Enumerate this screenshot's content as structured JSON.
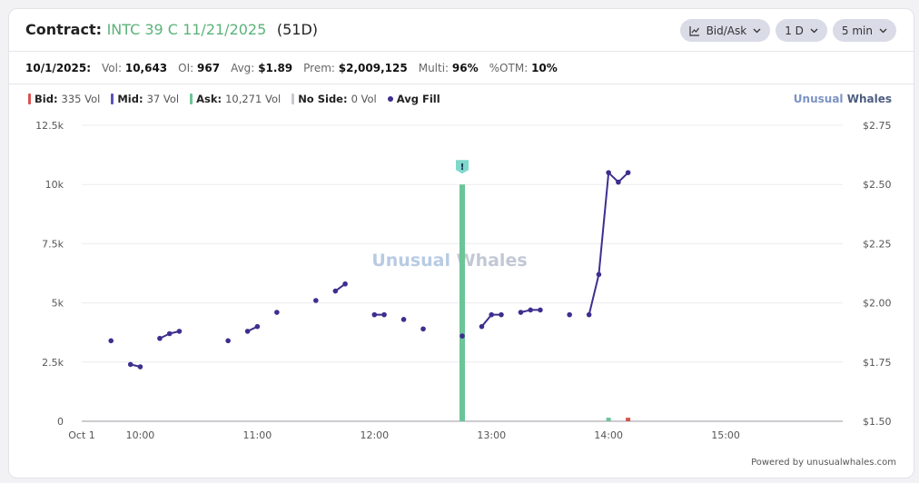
{
  "header": {
    "label": "Contract:",
    "contract": "INTC 39 C 11/21/2025",
    "dte": "(51D)",
    "controls": [
      {
        "label": "Bid/Ask",
        "icon": "chart-icon"
      },
      {
        "label": "1 D"
      },
      {
        "label": "5 min"
      }
    ]
  },
  "stats": {
    "date": "10/1/2025:",
    "vol_label": "Vol:",
    "vol": "10,643",
    "oi_label": "OI:",
    "oi": "967",
    "avg_label": "Avg:",
    "avg": "$1.89",
    "prem_label": "Prem:",
    "prem": "$2,009,125",
    "multi_label": "Multi:",
    "multi": "96%",
    "otm_label": "%OTM:",
    "otm": "10%"
  },
  "legend": {
    "bid_label": "Bid:",
    "bid_value": "335 Vol",
    "mid_label": "Mid:",
    "mid_value": "37 Vol",
    "ask_label": "Ask:",
    "ask_value": "10,271 Vol",
    "noside_label": "No Side:",
    "noside_value": "0 Vol",
    "avgfill_label": "Avg Fill"
  },
  "brand": {
    "part1": "Unusual",
    "part2": "Whales"
  },
  "powered_by": "Powered by unusualwhales.com",
  "colors": {
    "bid": "#d9534f",
    "mid": "#5a55b8",
    "ask": "#6cc497",
    "noside": "#c8c8d0",
    "avg_fill": "#3d2f8f",
    "accent_green": "#5bb37a"
  },
  "chart_data": {
    "type": "bar+line",
    "x_ticks": [
      "Oct 1",
      "10:00",
      "11:00",
      "12:00",
      "13:00",
      "14:00",
      "15:00"
    ],
    "y_left_ticks": [
      "0",
      "2.5k",
      "5k",
      "7.5k",
      "10k",
      "12.5k"
    ],
    "y_left_range": [
      0,
      12500
    ],
    "y_right_ticks": [
      "$1.50",
      "$1.75",
      "$2.00",
      "$2.25",
      "$2.50",
      "$2.75"
    ],
    "y_right_range": [
      1.5,
      2.75
    ],
    "grid": true,
    "volume_bars": [
      {
        "time": "12:45",
        "side": "ask",
        "value": 10000,
        "flag": "!"
      },
      {
        "time": "14:00",
        "side": "ask",
        "value": 150
      },
      {
        "time": "14:10",
        "side": "bid",
        "value": 150
      }
    ],
    "avg_fill_segments": [
      [
        {
          "time": "09:45",
          "price": 1.84
        }
      ],
      [
        {
          "time": "09:55",
          "price": 1.74
        },
        {
          "time": "10:00",
          "price": 1.73
        }
      ],
      [
        {
          "time": "10:10",
          "price": 1.85
        },
        {
          "time": "10:15",
          "price": 1.87
        },
        {
          "time": "10:20",
          "price": 1.88
        }
      ],
      [
        {
          "time": "10:45",
          "price": 1.84
        }
      ],
      [
        {
          "time": "10:55",
          "price": 1.88
        },
        {
          "time": "11:00",
          "price": 1.9
        }
      ],
      [
        {
          "time": "11:10",
          "price": 1.96
        }
      ],
      [
        {
          "time": "11:30",
          "price": 2.01
        }
      ],
      [
        {
          "time": "11:40",
          "price": 2.05
        },
        {
          "time": "11:45",
          "price": 2.08
        }
      ],
      [
        {
          "time": "12:00",
          "price": 1.95
        },
        {
          "time": "12:05",
          "price": 1.95
        }
      ],
      [
        {
          "time": "12:15",
          "price": 1.93
        }
      ],
      [
        {
          "time": "12:25",
          "price": 1.89
        }
      ],
      [
        {
          "time": "12:45",
          "price": 1.86
        }
      ],
      [
        {
          "time": "12:55",
          "price": 1.9
        },
        {
          "time": "13:00",
          "price": 1.95
        },
        {
          "time": "13:05",
          "price": 1.95
        }
      ],
      [
        {
          "time": "13:15",
          "price": 1.96
        },
        {
          "time": "13:20",
          "price": 1.97
        },
        {
          "time": "13:25",
          "price": 1.97
        }
      ],
      [
        {
          "time": "13:40",
          "price": 1.95
        }
      ],
      [
        {
          "time": "13:50",
          "price": 1.95
        },
        {
          "time": "13:55",
          "price": 2.12
        },
        {
          "time": "14:00",
          "price": 2.55
        },
        {
          "time": "14:05",
          "price": 2.51
        },
        {
          "time": "14:10",
          "price": 2.55
        }
      ]
    ]
  }
}
